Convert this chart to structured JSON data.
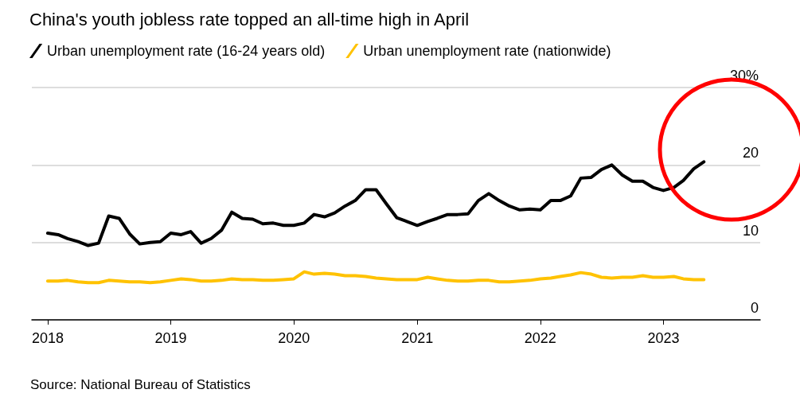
{
  "chart_data": {
    "type": "line",
    "title": "China's youth jobless rate topped an all-time high in April",
    "annotations": [
      "Source: National Bureau of Statistics"
    ],
    "x": [
      "2018-01",
      "2018-02",
      "2018-03",
      "2018-04",
      "2018-05",
      "2018-06",
      "2018-07",
      "2018-08",
      "2018-09",
      "2018-10",
      "2018-11",
      "2018-12",
      "2019-01",
      "2019-02",
      "2019-03",
      "2019-04",
      "2019-05",
      "2019-06",
      "2019-07",
      "2019-08",
      "2019-09",
      "2019-10",
      "2019-11",
      "2019-12",
      "2020-01",
      "2020-02",
      "2020-03",
      "2020-04",
      "2020-05",
      "2020-06",
      "2020-07",
      "2020-08",
      "2020-09",
      "2020-10",
      "2020-11",
      "2020-12",
      "2021-01",
      "2021-02",
      "2021-03",
      "2021-04",
      "2021-05",
      "2021-06",
      "2021-07",
      "2021-08",
      "2021-09",
      "2021-10",
      "2021-11",
      "2021-12",
      "2022-01",
      "2022-02",
      "2022-03",
      "2022-04",
      "2022-05",
      "2022-06",
      "2022-07",
      "2022-08",
      "2022-09",
      "2022-10",
      "2022-11",
      "2022-12",
      "2023-01",
      "2023-02",
      "2023-03",
      "2023-04",
      "2023-05"
    ],
    "series": [
      {
        "name": "Urban unemployment rate (16-24 years old)",
        "color": "#000000",
        "values": [
          11.2,
          11.0,
          10.5,
          10.1,
          9.6,
          9.9,
          13.4,
          13.1,
          11.1,
          9.8,
          10.0,
          10.1,
          11.2,
          11.0,
          11.4,
          9.9,
          10.5,
          11.6,
          13.9,
          13.1,
          13.0,
          12.4,
          12.5,
          12.2,
          12.2,
          12.5,
          13.6,
          13.3,
          13.8,
          14.7,
          15.4,
          16.8,
          16.8,
          15.0,
          13.2,
          12.7,
          12.2,
          12.7,
          13.1,
          13.6,
          13.6,
          13.7,
          15.4,
          16.3,
          15.4,
          14.7,
          14.2,
          14.3,
          14.2,
          15.4,
          15.4,
          16.0,
          18.3,
          18.4,
          19.4,
          20.0,
          18.7,
          17.9,
          17.9,
          17.1,
          16.7,
          17.1,
          18.0,
          19.5,
          20.4
        ]
      },
      {
        "name": "Urban unemployment rate (nationwide)",
        "color": "#ffc200",
        "values": [
          5.0,
          5.0,
          5.1,
          4.9,
          4.8,
          4.8,
          5.1,
          5.0,
          4.9,
          4.9,
          4.8,
          4.9,
          5.1,
          5.3,
          5.2,
          5.0,
          5.0,
          5.1,
          5.3,
          5.2,
          5.2,
          5.1,
          5.1,
          5.2,
          5.3,
          6.2,
          5.9,
          6.0,
          5.9,
          5.7,
          5.7,
          5.6,
          5.4,
          5.3,
          5.2,
          5.2,
          5.2,
          5.5,
          5.3,
          5.1,
          5.0,
          5.0,
          5.1,
          5.1,
          4.9,
          4.9,
          5.0,
          5.1,
          5.3,
          5.4,
          5.6,
          5.8,
          6.1,
          5.9,
          5.5,
          5.4,
          5.5,
          5.5,
          5.7,
          5.5,
          5.5,
          5.6,
          5.3,
          5.2,
          5.2
        ]
      }
    ],
    "xlim": [
      "2017-11-15",
      "2023-10-15"
    ],
    "xticks": [
      "2018",
      "2019",
      "2020",
      "2021",
      "2022",
      "2023"
    ],
    "ylim": [
      0,
      30
    ],
    "yticks": [
      0,
      10,
      20,
      {
        "value": 30,
        "label": "30%"
      }
    ],
    "grid": "y",
    "legend": "top left",
    "marker": "none",
    "line_style": "solid"
  }
}
